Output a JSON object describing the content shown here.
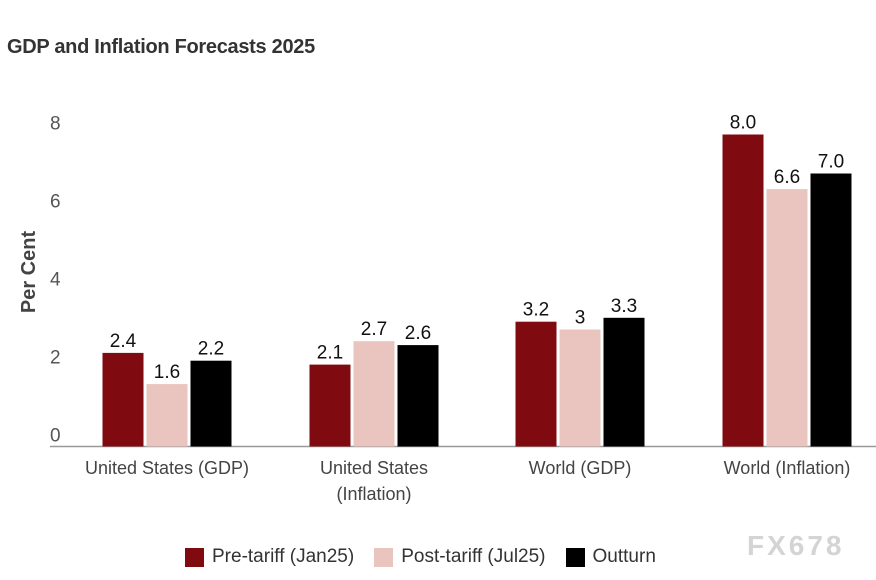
{
  "title": "GDP and Inflation Forecasts 2025",
  "watermark": "FX678",
  "chart_data": {
    "type": "bar",
    "title": "GDP and Inflation Forecasts 2025",
    "xlabel": "",
    "ylabel": "Per Cent",
    "ylim": [
      0,
      8
    ],
    "yticks": [
      0,
      2,
      4,
      6,
      8
    ],
    "grid": false,
    "legend": "bottom",
    "categories": [
      [
        "United States (GDP)"
      ],
      [
        "United States",
        "(Inflation)"
      ],
      [
        "World (GDP)"
      ],
      [
        "World (Inflation)"
      ]
    ],
    "series": [
      {
        "name": "Pre-tariff (Jan25)",
        "color": "#7f0a10",
        "values": [
          2.4,
          2.1,
          3.2,
          8.0
        ],
        "labels": [
          "2.4",
          "2.1",
          "3.2",
          "8.0"
        ]
      },
      {
        "name": "Post-tariff (Jul25)",
        "color": "#eac4be",
        "values": [
          1.6,
          2.7,
          3.0,
          6.6
        ],
        "labels": [
          "1.6",
          "2.7",
          "3",
          "6.6"
        ]
      },
      {
        "name": "Outturn",
        "color": "#000000",
        "values": [
          2.2,
          2.6,
          3.3,
          7.0
        ],
        "labels": [
          "2.2",
          "2.6",
          "3.3",
          "7.0"
        ]
      }
    ]
  }
}
